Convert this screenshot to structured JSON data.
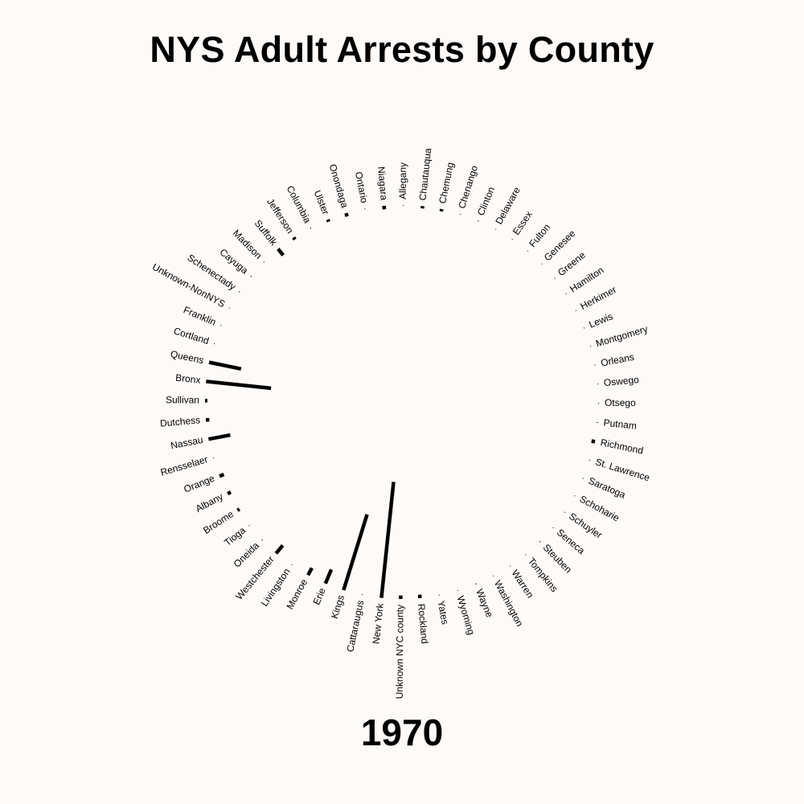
{
  "chart_data": {
    "type": "bar",
    "layout": "radial",
    "title": "NYS Adult Arrests by County",
    "year": "1970",
    "units": "relative bar length (share of largest county)",
    "data": [
      {
        "county": "Bronx",
        "value": 0.56
      },
      {
        "county": "Queens",
        "value": 0.28
      },
      {
        "county": "Cortland",
        "value": 0.005
      },
      {
        "county": "Franklin",
        "value": 0.005
      },
      {
        "county": "Unknown-NonNYS",
        "value": 0.005
      },
      {
        "county": "Schenectady",
        "value": 0.01
      },
      {
        "county": "Cayuga",
        "value": 0.01
      },
      {
        "county": "Madison",
        "value": 0.005
      },
      {
        "county": "Suffolk",
        "value": 0.07
      },
      {
        "county": "Jefferson",
        "value": 0.02
      },
      {
        "county": "Columbia",
        "value": 0.01
      },
      {
        "county": "Ulster",
        "value": 0.02
      },
      {
        "county": "Onondaga",
        "value": 0.03
      },
      {
        "county": "Ontario",
        "value": 0.005
      },
      {
        "county": "Niagara",
        "value": 0.03
      },
      {
        "county": "Allegany",
        "value": 0.005
      },
      {
        "county": "Chautauqua",
        "value": 0.02
      },
      {
        "county": "Chemung",
        "value": 0.02
      },
      {
        "county": "Chenango",
        "value": 0.005
      },
      {
        "county": "Clinton",
        "value": 0.01
      },
      {
        "county": "Delaware",
        "value": 0.005
      },
      {
        "county": "Essex",
        "value": 0.005
      },
      {
        "county": "Fulton",
        "value": 0.005
      },
      {
        "county": "Genesee",
        "value": 0.005
      },
      {
        "county": "Greene",
        "value": 0.005
      },
      {
        "county": "Hamilton",
        "value": 0.005
      },
      {
        "county": "Herkimer",
        "value": 0.005
      },
      {
        "county": "Lewis",
        "value": 0.005
      },
      {
        "county": "Montgomery",
        "value": 0.005
      },
      {
        "county": "Orleans",
        "value": 0.005
      },
      {
        "county": "Oswego",
        "value": 0.005
      },
      {
        "county": "Otsego",
        "value": 0.005
      },
      {
        "county": "Putnam",
        "value": 0.01
      },
      {
        "county": "Richmond",
        "value": 0.03
      },
      {
        "county": "St. Lawrence",
        "value": 0.005
      },
      {
        "county": "Saratoga",
        "value": 0.005
      },
      {
        "county": "Schoharie",
        "value": 0.005
      },
      {
        "county": "Schuyler",
        "value": 0.005
      },
      {
        "county": "Seneca",
        "value": 0.005
      },
      {
        "county": "Steuben",
        "value": 0.01
      },
      {
        "county": "Tompkins",
        "value": 0.005
      },
      {
        "county": "Warren",
        "value": 0.005
      },
      {
        "county": "Washington",
        "value": 0.005
      },
      {
        "county": "Wayne",
        "value": 0.01
      },
      {
        "county": "Wyoming",
        "value": 0.005
      },
      {
        "county": "Yates",
        "value": 0.005
      },
      {
        "county": "Rockland",
        "value": 0.03
      },
      {
        "county": "Unknown NYC county",
        "value": 0.03
      },
      {
        "county": "New York",
        "value": 1.0
      },
      {
        "county": "Cattaraugus",
        "value": 0.005
      },
      {
        "county": "Kings",
        "value": 0.68
      },
      {
        "county": "Erie",
        "value": 0.13
      },
      {
        "county": "Monroe",
        "value": 0.07
      },
      {
        "county": "Livingston",
        "value": 0.005
      },
      {
        "county": "Westchester",
        "value": 0.09
      },
      {
        "county": "Oneida",
        "value": 0.01
      },
      {
        "county": "Tioga",
        "value": 0.005
      },
      {
        "county": "Broome",
        "value": 0.02
      },
      {
        "county": "Albany",
        "value": 0.03
      },
      {
        "county": "Orange",
        "value": 0.04
      },
      {
        "county": "Rensselaer",
        "value": 0.005
      },
      {
        "county": "Nassau",
        "value": 0.19
      },
      {
        "county": "Dutchess",
        "value": 0.03
      },
      {
        "county": "Sullivan",
        "value": 0.02
      }
    ]
  }
}
